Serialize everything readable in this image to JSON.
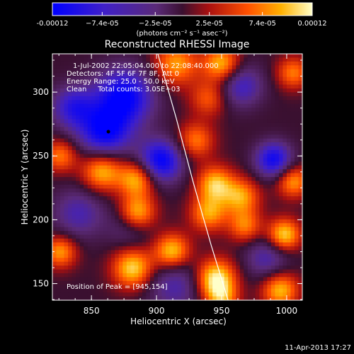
{
  "chart_data": {
    "type": "heatmap",
    "title": "Reconstructed RHESSI Image",
    "xlabel": "Heliocentric X (arcsec)",
    "ylabel": "Heliocentric Y (arcsec)",
    "xlim": [
      820,
      1012
    ],
    "ylim": [
      137,
      330
    ],
    "xticks": [
      850,
      900,
      950,
      1000
    ],
    "yticks": [
      150,
      200,
      250,
      300
    ],
    "colorbar": {
      "min": -0.00012,
      "max": 0.00012,
      "tick_labels": [
        "-0.00012",
        "−7.4e-05",
        "−2.5e-05",
        "2.5e-05",
        "7.4e-05",
        "0.00012"
      ],
      "tick_values": [
        -0.00012,
        -7.4e-05,
        -2.5e-05,
        2.5e-05,
        7.4e-05,
        0.00012
      ],
      "units_label": "(photons cm⁻² s⁻¹ asec⁻²)"
    },
    "info_lines": [
      "1-Jul-2002 22:05:04.000 to 22:08:40.000",
      "Detectors: 4F 5F 6F 7F 8F, Att 0",
      "Energy Range: 25.0 - 50.0 keV",
      "Clean     Total counts: 3.05E+03"
    ],
    "peak_label": "Position of Peak = [945,154]",
    "peak": [
      945,
      154
    ],
    "min_marker": [
      863,
      269
    ],
    "limb": [
      [
        901,
        330
      ],
      [
        915,
        280
      ],
      [
        928,
        230
      ],
      [
        942,
        180
      ],
      [
        955,
        137
      ]
    ],
    "sources": [
      {
        "x": 875,
        "y": 296,
        "a": -1.0,
        "w": 16
      },
      {
        "x": 836,
        "y": 288,
        "a": -0.7,
        "w": 12
      },
      {
        "x": 860,
        "y": 268,
        "a": -0.9,
        "w": 14
      },
      {
        "x": 903,
        "y": 246,
        "a": -1.0,
        "w": 12
      },
      {
        "x": 990,
        "y": 247,
        "a": -0.9,
        "w": 10
      },
      {
        "x": 965,
        "y": 305,
        "a": -0.6,
        "w": 12
      },
      {
        "x": 915,
        "y": 150,
        "a": -0.5,
        "w": 16
      },
      {
        "x": 840,
        "y": 205,
        "a": -0.5,
        "w": 14
      },
      {
        "x": 880,
        "y": 195,
        "a": -0.4,
        "w": 12
      },
      {
        "x": 985,
        "y": 170,
        "a": -0.5,
        "w": 12
      },
      {
        "x": 915,
        "y": 322,
        "a": 0.7,
        "w": 12
      },
      {
        "x": 950,
        "y": 322,
        "a": 0.8,
        "w": 10
      },
      {
        "x": 940,
        "y": 295,
        "a": 0.5,
        "w": 10
      },
      {
        "x": 930,
        "y": 262,
        "a": 0.6,
        "w": 10
      },
      {
        "x": 945,
        "y": 228,
        "a": 0.8,
        "w": 10
      },
      {
        "x": 965,
        "y": 218,
        "a": 0.7,
        "w": 10
      },
      {
        "x": 940,
        "y": 205,
        "a": 0.7,
        "w": 10
      },
      {
        "x": 968,
        "y": 195,
        "a": 0.6,
        "w": 9
      },
      {
        "x": 858,
        "y": 238,
        "a": 0.8,
        "w": 11
      },
      {
        "x": 885,
        "y": 232,
        "a": 0.8,
        "w": 10
      },
      {
        "x": 885,
        "y": 205,
        "a": 0.9,
        "w": 10
      },
      {
        "x": 882,
        "y": 162,
        "a": 0.9,
        "w": 11
      },
      {
        "x": 912,
        "y": 175,
        "a": 0.9,
        "w": 10
      },
      {
        "x": 945,
        "y": 154,
        "a": 1.0,
        "w": 11
      },
      {
        "x": 950,
        "y": 138,
        "a": 0.6,
        "w": 9
      },
      {
        "x": 998,
        "y": 188,
        "a": 0.9,
        "w": 9
      },
      {
        "x": 995,
        "y": 145,
        "a": 0.8,
        "w": 10
      },
      {
        "x": 1005,
        "y": 230,
        "a": 0.7,
        "w": 9
      },
      {
        "x": 1005,
        "y": 315,
        "a": 0.6,
        "w": 9
      },
      {
        "x": 826,
        "y": 175,
        "a": 0.7,
        "w": 9
      },
      {
        "x": 826,
        "y": 250,
        "a": 0.6,
        "w": 9
      }
    ]
  },
  "timestamp": "11-Apr-2013 17:27"
}
